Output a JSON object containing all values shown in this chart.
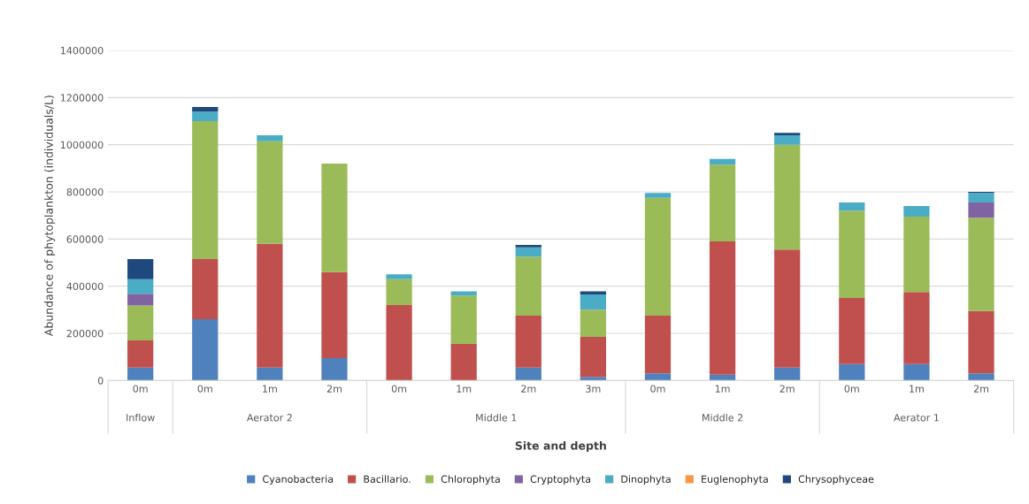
{
  "chart_data": {
    "type": "bar",
    "stacked": true,
    "xlabel": "Site and depth",
    "ylabel": "Abundance of phytoplankton (individuals/L)",
    "categories": [
      "0m",
      "0m",
      "1m",
      "2m",
      "0m",
      "1m",
      "2m",
      "3m",
      "0m",
      "1m",
      "2m",
      "0m",
      "1m",
      "2m"
    ],
    "series": [
      {
        "name": "Cyanobacteria",
        "color": "#4f81bd",
        "values": [
          55000,
          260000,
          55000,
          95000,
          0,
          0,
          55000,
          15000,
          30000,
          25000,
          55000,
          70000,
          70000,
          30000
        ]
      },
      {
        "name": "Bacillario.",
        "color": "#c0504d",
        "values": [
          115000,
          255000,
          525000,
          365000,
          320000,
          155000,
          220000,
          170000,
          245000,
          565000,
          500000,
          280000,
          305000,
          265000
        ]
      },
      {
        "name": "Chlorophyta",
        "color": "#9bbb59",
        "values": [
          148000,
          585000,
          435000,
          460000,
          110000,
          205000,
          250000,
          115000,
          500000,
          325000,
          445000,
          370000,
          320000,
          395000
        ]
      },
      {
        "name": "Cryptophyta",
        "color": "#8064a2",
        "values": [
          50000,
          0,
          0,
          0,
          0,
          0,
          0,
          0,
          0,
          0,
          0,
          0,
          0,
          65000
        ]
      },
      {
        "name": "Dinophyta",
        "color": "#4bacc6",
        "values": [
          62000,
          40000,
          25000,
          0,
          20000,
          18000,
          40000,
          65000,
          20000,
          25000,
          40000,
          35000,
          45000,
          40000
        ]
      },
      {
        "name": "Euglenophyta",
        "color": "#f79646",
        "values": [
          0,
          0,
          0,
          0,
          0,
          0,
          0,
          0,
          0,
          0,
          0,
          0,
          0,
          0
        ]
      },
      {
        "name": "Chrysophyceae",
        "color": "#1f497d",
        "values": [
          85000,
          20000,
          0,
          0,
          0,
          0,
          10000,
          13000,
          0,
          0,
          10000,
          0,
          0,
          5000
        ]
      }
    ],
    "ylim": [
      0,
      1400000
    ],
    "yticks": [
      0,
      200000,
      400000,
      600000,
      800000,
      1000000,
      1200000,
      1400000
    ],
    "grid": "y",
    "legend": "bottom",
    "annotations": [
      "Inflow",
      "Aerator 2",
      "Middle 1",
      "Middle 2",
      "Aerator 1"
    ]
  }
}
